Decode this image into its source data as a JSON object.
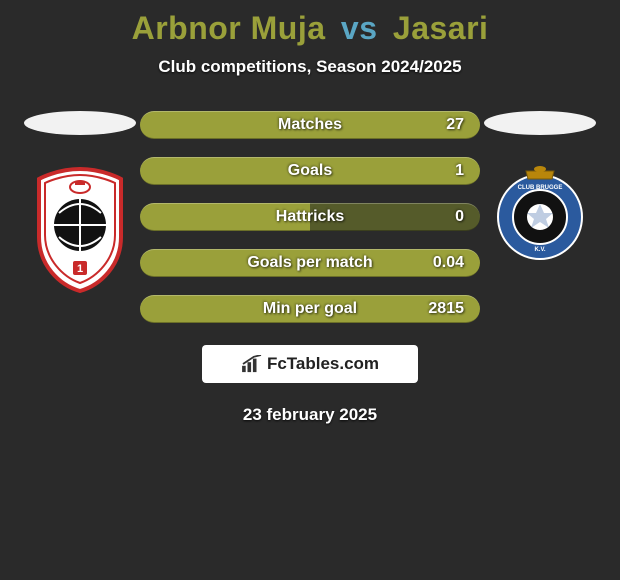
{
  "title": {
    "player1": "Arbnor Muja",
    "vs": "vs",
    "player2": "Jasari",
    "player1_color": "#9aa03a",
    "vs_color": "#5aa6c4",
    "player2_color": "#9aa03a"
  },
  "subtitle": "Club competitions, Season 2024/2025",
  "stats": [
    {
      "label": "Matches",
      "value": "27",
      "left_color": "#9aa03a",
      "right_color": "#9aa03a",
      "split": 0.5
    },
    {
      "label": "Goals",
      "value": "1",
      "left_color": "#9aa03a",
      "right_color": "#9aa03a",
      "split": 0.5
    },
    {
      "label": "Hattricks",
      "value": "0",
      "left_color": "#9aa03a",
      "right_color": "#555b2a",
      "split": 0.5
    },
    {
      "label": "Goals per match",
      "value": "0.04",
      "left_color": "#9aa03a",
      "right_color": "#9aa03a",
      "split": 0.5
    },
    {
      "label": "Min per goal",
      "value": "2815",
      "left_color": "#9aa03a",
      "right_color": "#9aa03a",
      "split": 0.5
    }
  ],
  "watermark": "FcTables.com",
  "date": "23 february 2025",
  "crest_left": {
    "name": "Royal Antwerp FC",
    "colors": {
      "shield": "#ffffff",
      "outline": "#c92a2a",
      "inner": "#111111"
    }
  },
  "crest_right": {
    "name": "Club Brugge KV",
    "colors": {
      "ring": "#2b5a9e",
      "center": "#111111",
      "gold": "#b8860b"
    }
  },
  "background_color": "#2a2a2a"
}
